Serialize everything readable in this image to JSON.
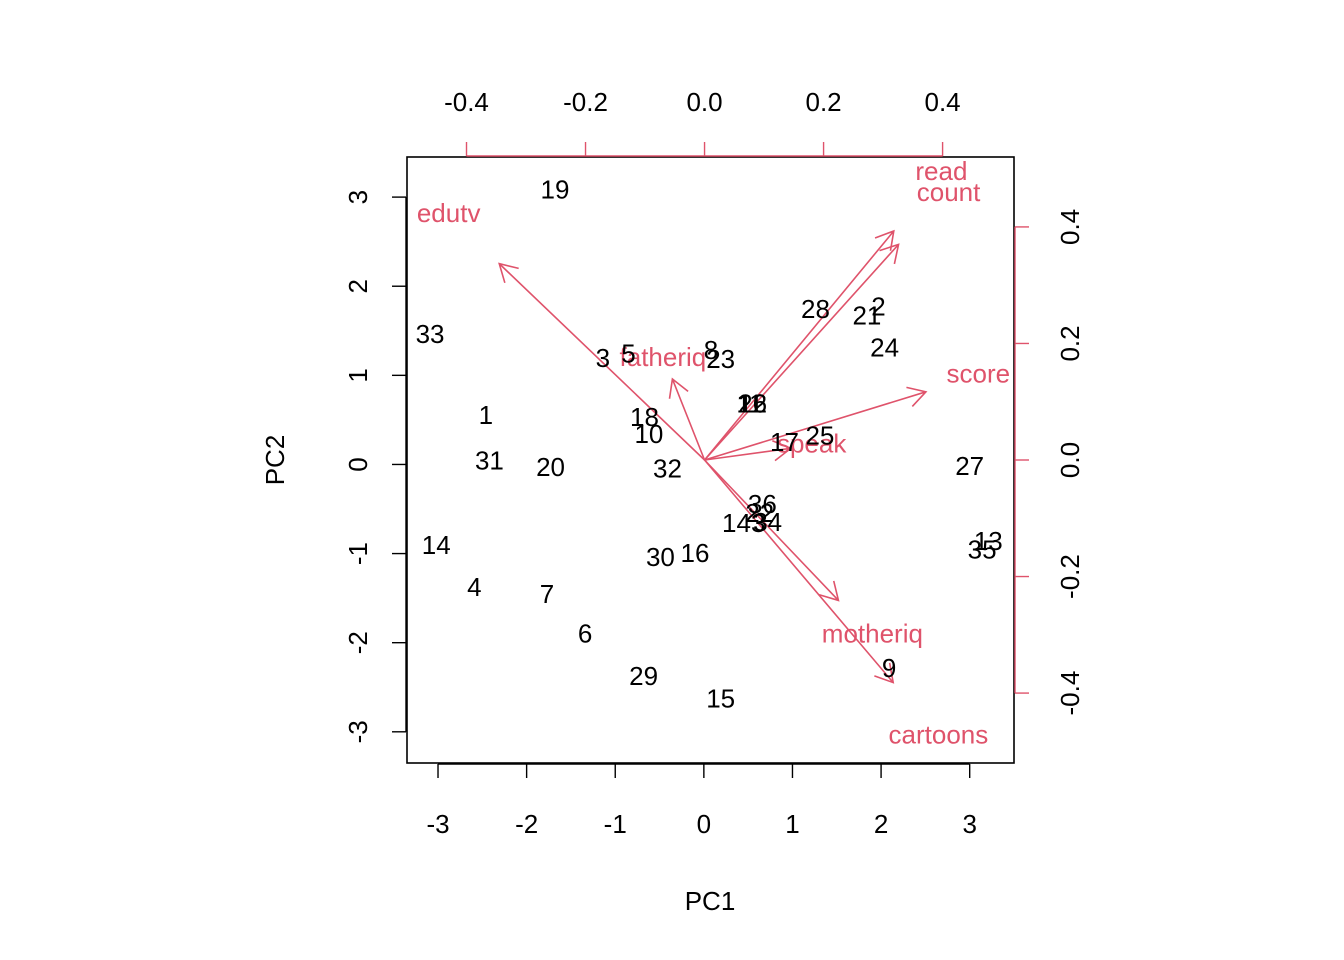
{
  "chart_data": {
    "type": "scatter",
    "subtype": "biplot",
    "xlabel": "PC1",
    "ylabel": "PC2",
    "xlim": [
      -3.35,
      3.5
    ],
    "ylim": [
      -3.35,
      3.45
    ],
    "xlim_top": [
      -0.5,
      0.52
    ],
    "ylim_right": [
      -0.52,
      0.52
    ],
    "ticks_bottom": [
      -3,
      -2,
      -1,
      0,
      1,
      2,
      3
    ],
    "ticks_left": [
      -3,
      -2,
      -1,
      0,
      1,
      2,
      3
    ],
    "ticks_top": [
      -0.4,
      -0.2,
      0.0,
      0.2,
      0.4
    ],
    "ticks_right": [
      -0.4,
      -0.2,
      0.0,
      0.2,
      0.4
    ],
    "tick_labels_bottom": [
      "-3",
      "-2",
      "-1",
      "0",
      "1",
      "2",
      "3"
    ],
    "tick_labels_left": [
      "-3",
      "-2",
      "-1",
      "0",
      "1",
      "2",
      "3"
    ],
    "tick_labels_top": [
      "-0.4",
      "-0.2",
      "0.0",
      "0.2",
      "0.4"
    ],
    "tick_labels_right": [
      "-0.4",
      "-0.2",
      "0.0",
      "0.2",
      "0.4"
    ],
    "grid": false,
    "colors": {
      "observations": "#000000",
      "loadings": "#DF536B"
    },
    "observations": [
      {
        "label": "1",
        "x": -2.46,
        "y": 0.53
      },
      {
        "label": "2",
        "x": 1.97,
        "y": 1.75
      },
      {
        "label": "3",
        "x": -1.14,
        "y": 1.17
      },
      {
        "label": "4",
        "x": -2.59,
        "y": -1.4
      },
      {
        "label": "5",
        "x": -0.85,
        "y": 1.22
      },
      {
        "label": "6",
        "x": -1.34,
        "y": -1.92
      },
      {
        "label": "7",
        "x": -1.77,
        "y": -1.48
      },
      {
        "label": "8",
        "x": 0.08,
        "y": 1.26
      },
      {
        "label": "9",
        "x": 2.09,
        "y": -2.31
      },
      {
        "label": "10",
        "x": -0.62,
        "y": 0.32
      },
      {
        "label": "11",
        "x": 0.52,
        "y": 0.66
      },
      {
        "label": "12",
        "x": 0.55,
        "y": 0.66
      },
      {
        "label": "13",
        "x": 3.21,
        "y": -0.88
      },
      {
        "label": "14",
        "x": -3.02,
        "y": -0.93
      },
      {
        "label": "15",
        "x": 0.19,
        "y": -2.65
      },
      {
        "label": "16",
        "x": -0.1,
        "y": -1.02
      },
      {
        "label": "17",
        "x": 0.91,
        "y": 0.23
      },
      {
        "label": "18",
        "x": -0.67,
        "y": 0.51
      },
      {
        "label": "19",
        "x": -1.68,
        "y": 3.06
      },
      {
        "label": "20",
        "x": -1.73,
        "y": -0.05
      },
      {
        "label": "21",
        "x": 1.84,
        "y": 1.65
      },
      {
        "label": "22",
        "x": 0.63,
        "y": -0.57
      },
      {
        "label": "23",
        "x": 0.19,
        "y": 1.16
      },
      {
        "label": "24",
        "x": 2.04,
        "y": 1.29
      },
      {
        "label": "25",
        "x": 1.31,
        "y": 0.3
      },
      {
        "label": "26",
        "x": 0.55,
        "y": 0.66
      },
      {
        "label": "27",
        "x": 3.0,
        "y": -0.04
      },
      {
        "label": "28",
        "x": 1.26,
        "y": 1.72
      },
      {
        "label": "29",
        "x": -0.68,
        "y": -2.4
      },
      {
        "label": "30",
        "x": -0.49,
        "y": -1.06
      },
      {
        "label": "31",
        "x": -2.42,
        "y": 0.02
      },
      {
        "label": "32",
        "x": -0.41,
        "y": -0.07
      },
      {
        "label": "33",
        "x": -3.09,
        "y": 1.44
      },
      {
        "label": "34",
        "x": 0.72,
        "y": -0.67
      },
      {
        "label": "35",
        "x": 3.14,
        "y": -0.98
      },
      {
        "label": "36",
        "x": 0.66,
        "y": -0.47
      },
      {
        "label": "143",
        "x": 0.45,
        "y": -0.68
      }
    ],
    "loadings": [
      {
        "label": "read",
        "x": 0.318,
        "y": 0.393,
        "label_x": 0.398,
        "label_y": 0.492
      },
      {
        "label": "count",
        "x": 0.326,
        "y": 0.37,
        "label_x": 0.41,
        "label_y": 0.456
      },
      {
        "label": "edutv",
        "x": -0.345,
        "y": 0.337,
        "label_x": -0.43,
        "label_y": 0.42
      },
      {
        "label": "fatheriq",
        "x": -0.054,
        "y": 0.139,
        "label_x": -0.07,
        "label_y": 0.173
      },
      {
        "label": "score",
        "x": 0.372,
        "y": 0.117,
        "label_x": 0.46,
        "label_y": 0.145
      },
      {
        "label": "speak",
        "x": 0.145,
        "y": 0.02,
        "label_x": 0.18,
        "label_y": 0.025
      },
      {
        "label": "motheriq",
        "x": 0.225,
        "y": -0.241,
        "label_x": 0.282,
        "label_y": -0.301
      },
      {
        "label": "cartoons",
        "x": 0.317,
        "y": -0.382,
        "label_x": 0.393,
        "label_y": -0.475
      }
    ]
  }
}
